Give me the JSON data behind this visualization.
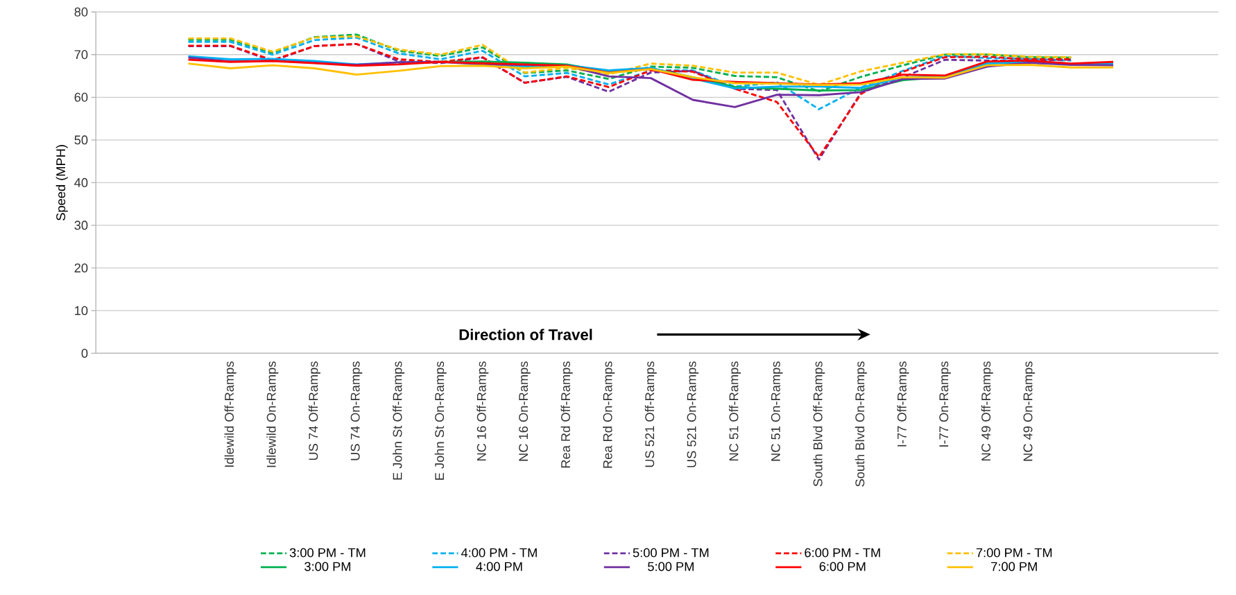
{
  "chart_data": {
    "type": "line",
    "ylabel": "Speed (MPH)",
    "annotations": [
      "Direction of Travel"
    ],
    "categories": [
      null,
      "Idlewild Off-Ramps",
      "Idlewild On-Ramps",
      "US 74 Off-Ramps",
      "US 74 On-Ramps",
      "E John St Off-Ramps",
      "E John St On-Ramps",
      "NC 16 Off-Ramps",
      "NC 16 On-Ramps",
      "Rea Rd Off-Ramps",
      "Rea Rd On-Ramps",
      "US 521 Off-Ramps",
      "US 521 On-Ramps",
      "NC 51 Off-Ramps",
      "NC 51 On-Ramps",
      "South Blvd Off-Ramps",
      "South Blvd On-Ramps",
      "I-77 Off-Ramps",
      "I-77 On-Ramps",
      "NC 49 Off-Ramps",
      "NC 49 On-Ramps",
      null,
      null
    ],
    "ylim": [
      0,
      80
    ],
    "yticks": [
      0,
      10,
      20,
      30,
      40,
      50,
      60,
      70,
      80
    ],
    "grid": "y",
    "legend": "bottom",
    "marker": "none",
    "series": [
      {
        "name": "3:00 PM - TM",
        "color": "#00b050",
        "line_style": "dashed",
        "values": [
          73.5,
          73.5,
          70.4,
          74.1,
          74.7,
          70.9,
          69.7,
          71.7,
          65.7,
          66.3,
          64.3,
          67.2,
          66.9,
          65.0,
          64.7,
          61.4,
          64.8,
          67.5,
          70.0,
          70.0,
          69.4,
          69.3,
          null
        ]
      },
      {
        "name": "4:00 PM - TM",
        "color": "#00b0f0",
        "line_style": "dashed",
        "values": [
          73.0,
          73.0,
          70.0,
          73.4,
          74.0,
          70.3,
          68.9,
          70.9,
          64.9,
          65.7,
          63.0,
          66.3,
          66.3,
          62.5,
          63.5,
          57.2,
          62.3,
          66.2,
          69.7,
          69.2,
          69.0,
          68.6,
          null
        ]
      },
      {
        "name": "5:00 PM - TM",
        "color": "#7030a0",
        "line_style": "dashed",
        "values": [
          72.0,
          72.0,
          68.5,
          72.0,
          72.5,
          68.4,
          68.0,
          69.3,
          63.4,
          64.8,
          61.3,
          65.8,
          66.2,
          62.0,
          61.7,
          45.4,
          61.1,
          64.7,
          68.8,
          68.6,
          68.6,
          68.8,
          null
        ]
      },
      {
        "name": "6:00 PM - TM",
        "color": "#ff0000",
        "line_style": "dashed",
        "values": [
          72.1,
          72.1,
          68.7,
          72.0,
          72.5,
          68.9,
          68.3,
          69.4,
          63.4,
          64.9,
          62.4,
          66.3,
          66.0,
          62.0,
          58.9,
          46.0,
          60.8,
          66.0,
          69.4,
          69.5,
          68.9,
          68.9,
          null
        ]
      },
      {
        "name": "7:00 PM - TM",
        "color": "#ffc000",
        "line_style": "dashed",
        "values": [
          73.8,
          73.8,
          70.7,
          74.0,
          74.3,
          71.2,
          70.0,
          72.3,
          65.8,
          66.9,
          65.4,
          67.9,
          67.4,
          65.8,
          65.8,
          62.9,
          66.1,
          68.1,
          70.1,
          70.1,
          69.5,
          69.4,
          null
        ]
      },
      {
        "name": "3:00 PM",
        "color": "#00b050",
        "line_style": "solid",
        "values": [
          null,
          null,
          null,
          null,
          null,
          68.0,
          68.3,
          68.4,
          68.1,
          67.7,
          66.0,
          66.8,
          64.7,
          62.4,
          62.0,
          61.6,
          61.7,
          64.0,
          64.8,
          67.9,
          68.3,
          null,
          null
        ]
      },
      {
        "name": "4:00 PM",
        "color": "#00b0f0",
        "line_style": "solid",
        "values": [
          69.6,
          68.9,
          69.0,
          68.5,
          67.7,
          68.2,
          68.3,
          67.9,
          67.2,
          67.5,
          66.3,
          66.9,
          64.4,
          62.1,
          62.5,
          62.5,
          62.2,
          64.7,
          65.0,
          67.9,
          68.3,
          67.7,
          67.8
        ]
      },
      {
        "name": "5:00 PM",
        "color": "#7030a0",
        "line_style": "solid",
        "values": [
          69.3,
          68.4,
          68.6,
          68.1,
          67.6,
          68.2,
          68.3,
          67.7,
          67.6,
          67.4,
          64.9,
          64.5,
          59.4,
          57.7,
          60.6,
          60.5,
          61.2,
          64.3,
          64.4,
          67.2,
          68.1,
          67.6,
          67.5
        ]
      },
      {
        "name": "6:00 PM",
        "color": "#ff0000",
        "line_style": "solid",
        "values": [
          68.8,
          68.3,
          68.5,
          68.0,
          67.4,
          67.7,
          68.3,
          68.0,
          67.7,
          67.4,
          65.8,
          66.6,
          64.1,
          63.6,
          63.3,
          63.0,
          63.3,
          65.3,
          65.1,
          68.4,
          68.6,
          67.9,
          68.3
        ]
      },
      {
        "name": "7:00 PM",
        "color": "#ffc000",
        "line_style": "solid",
        "values": [
          67.9,
          66.8,
          67.5,
          66.8,
          65.3,
          66.2,
          67.3,
          67.4,
          66.8,
          67.2,
          65.7,
          66.6,
          64.7,
          63.3,
          63.2,
          62.9,
          63.0,
          64.7,
          64.6,
          67.5,
          67.6,
          67.0,
          67.0
        ]
      }
    ]
  }
}
